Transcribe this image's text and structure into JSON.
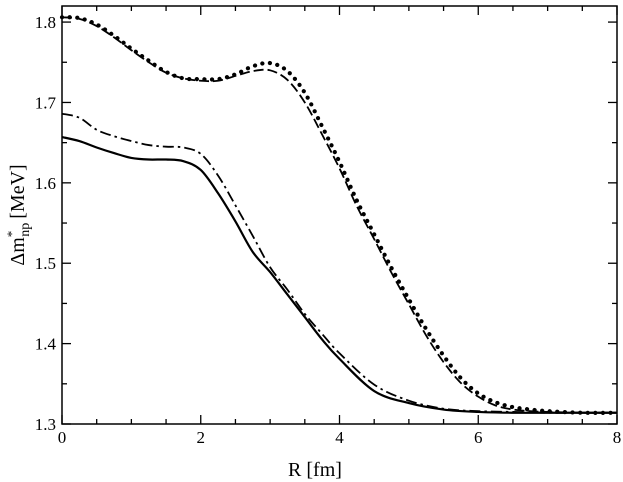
{
  "chart_data": {
    "type": "line",
    "xlabel": "R [fm]",
    "ylabel_main": "Δm",
    "ylabel_sup": "*",
    "ylabel_sub": "np",
    "ylabel_unit": "[MeV]",
    "xlim": [
      0,
      8
    ],
    "ylim": [
      1.3,
      1.82
    ],
    "x_ticks": [
      "0",
      "2",
      "4",
      "6",
      "8"
    ],
    "y_ticks": [
      "1.3",
      "1.4",
      "1.5",
      "1.6",
      "1.7",
      "1.8"
    ],
    "grid": false,
    "legend": "none",
    "series": [
      {
        "style": "solid",
        "x": [
          0,
          0.25,
          0.5,
          0.75,
          1.0,
          1.25,
          1.5,
          1.75,
          2.0,
          2.25,
          2.5,
          2.75,
          3.0,
          3.25,
          3.5,
          3.75,
          4.0,
          4.5,
          5.0,
          5.5,
          6.0,
          6.5,
          7.0,
          7.5,
          8.0
        ],
        "y": [
          1.657,
          1.652,
          1.644,
          1.637,
          1.631,
          1.629,
          1.629,
          1.627,
          1.616,
          1.587,
          1.552,
          1.514,
          1.489,
          1.461,
          1.433,
          1.405,
          1.381,
          1.341,
          1.326,
          1.318,
          1.315,
          1.314,
          1.314,
          1.314,
          1.314
        ]
      },
      {
        "style": "dashdot",
        "x": [
          0,
          0.25,
          0.5,
          0.75,
          1.0,
          1.25,
          1.5,
          1.75,
          2.0,
          2.25,
          2.5,
          2.75,
          3.0,
          3.25,
          3.5,
          3.75,
          4.0,
          4.5,
          5.0,
          5.5,
          6.0,
          6.5,
          7.0,
          7.5,
          8.0
        ],
        "y": [
          1.686,
          1.681,
          1.666,
          1.658,
          1.652,
          1.647,
          1.645,
          1.644,
          1.636,
          1.609,
          1.572,
          1.534,
          1.495,
          1.467,
          1.437,
          1.412,
          1.388,
          1.349,
          1.329,
          1.319,
          1.316,
          1.315,
          1.314,
          1.314,
          1.314
        ]
      },
      {
        "style": "dashed",
        "x": [
          0,
          0.25,
          0.5,
          0.75,
          1.0,
          1.25,
          1.5,
          1.75,
          2.0,
          2.25,
          2.5,
          2.75,
          3.0,
          3.25,
          3.5,
          3.75,
          4.0,
          4.25,
          4.5,
          4.75,
          5.0,
          5.25,
          5.5,
          5.75,
          6.0,
          6.25,
          6.5,
          6.75,
          7.0,
          7.5,
          8.0
        ],
        "y": [
          1.806,
          1.804,
          1.795,
          1.781,
          1.765,
          1.75,
          1.737,
          1.73,
          1.727,
          1.727,
          1.733,
          1.739,
          1.74,
          1.728,
          1.7,
          1.66,
          1.618,
          1.571,
          1.53,
          1.488,
          1.449,
          1.41,
          1.377,
          1.351,
          1.334,
          1.323,
          1.318,
          1.316,
          1.315,
          1.314,
          1.314
        ]
      },
      {
        "style": "dotted",
        "x": [
          0,
          0.25,
          0.5,
          0.75,
          1.0,
          1.25,
          1.5,
          1.75,
          2.0,
          2.25,
          2.5,
          2.75,
          3.0,
          3.25,
          3.5,
          3.75,
          4.0,
          4.25,
          4.5,
          4.75,
          5.0,
          5.25,
          5.5,
          5.75,
          6.0,
          6.25,
          6.5,
          6.75,
          7.0,
          7.5,
          8.0
        ],
        "y": [
          1.806,
          1.805,
          1.797,
          1.783,
          1.767,
          1.752,
          1.738,
          1.73,
          1.729,
          1.729,
          1.735,
          1.745,
          1.749,
          1.739,
          1.712,
          1.67,
          1.626,
          1.578,
          1.536,
          1.494,
          1.455,
          1.418,
          1.385,
          1.357,
          1.338,
          1.327,
          1.321,
          1.318,
          1.316,
          1.314,
          1.314
        ]
      }
    ]
  }
}
